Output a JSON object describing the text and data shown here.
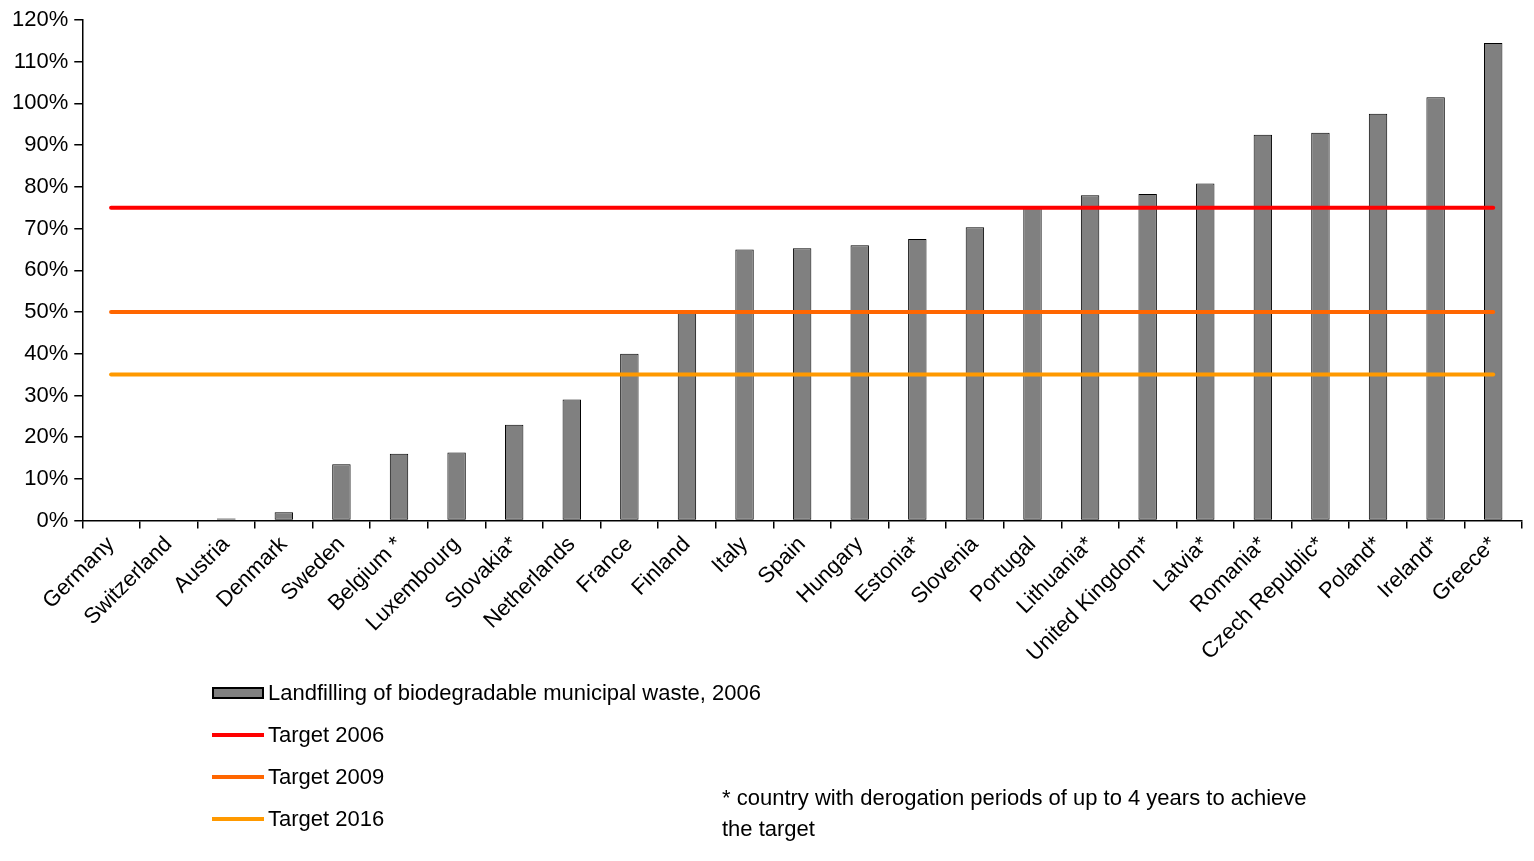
{
  "chart_data": {
    "type": "bar",
    "categories": [
      "Germany",
      "Switzerland",
      "Austria",
      "Denmark",
      "Sweden",
      "Belgium *",
      "Luxembourg",
      "Slovakia*",
      "Netherlands",
      "France",
      "Finland",
      "Italy",
      "Spain",
      "Hungary",
      "Estonia*",
      "Slovenia",
      "Portugal",
      "Lithuania*",
      "United Kingdom*",
      "Latvia*",
      "Romania*",
      "Czech Republic*",
      "Poland*",
      "Ireland*",
      "Greece*"
    ],
    "series": [
      {
        "name": "Landfilling of biodegradable municipal waste, 2006",
        "color": "#808080",
        "values": [
          0,
          0,
          0.5,
          2,
          13.5,
          16,
          16.3,
          23,
          29,
          40,
          50,
          65,
          65.3,
          66,
          67.5,
          70.3,
          75,
          78,
          78.3,
          80.8,
          92.5,
          93,
          97.5,
          101.5,
          114.5
        ]
      }
    ],
    "ylim": [
      0,
      120
    ],
    "yticks": [
      {
        "value": 0,
        "label": "0%"
      },
      {
        "value": 10,
        "label": "10%"
      },
      {
        "value": 20,
        "label": "20%"
      },
      {
        "value": 30,
        "label": "30%"
      },
      {
        "value": 40,
        "label": "40%"
      },
      {
        "value": 50,
        "label": "50%"
      },
      {
        "value": 60,
        "label": "60%"
      },
      {
        "value": 70,
        "label": "70%"
      },
      {
        "value": 80,
        "label": "80%"
      },
      {
        "value": 90,
        "label": "90%"
      },
      {
        "value": 100,
        "label": "100%"
      },
      {
        "value": 110,
        "label": "110%"
      },
      {
        "value": 120,
        "label": "120%"
      }
    ],
    "ref_lines": [
      {
        "axis": "y",
        "value": 75,
        "label": "Target 2006",
        "color": "#ff0000"
      },
      {
        "axis": "y",
        "value": 50,
        "label": "Target 2009",
        "color": "#ff6600"
      },
      {
        "axis": "y",
        "value": 35,
        "label": "Target 2016",
        "color": "#ff9900"
      }
    ],
    "grid": false,
    "legend": "bottom left",
    "annotations": [
      "* country with derogation periods of up to 4 years to achieve the target"
    ]
  }
}
